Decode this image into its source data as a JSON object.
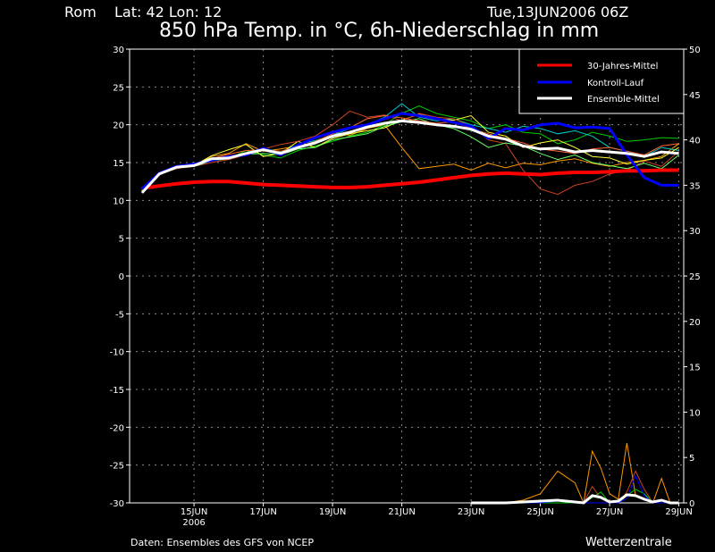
{
  "header": {
    "location": "Rom",
    "coords": "Lat: 42 Lon: 12",
    "run": "Tue,13JUN2006 06Z"
  },
  "footer": {
    "source": "Daten: Ensembles des GFS von NCEP",
    "brand": "Wetterzentrale"
  },
  "chart_data": {
    "type": "line",
    "title": "850 hPa Temp. in °C, 6h-Niederschlag in mm",
    "xlabel": "",
    "ylabel_left": "850 hPa Temp. (°C)",
    "ylabel_right": "6h-Niederschlag (mm)",
    "x_unit": "days after 13JUN2006 00Z",
    "xlim": [
      0.14,
      16.14
    ],
    "ylim_left": [
      -30,
      30
    ],
    "ylim_right": [
      0,
      50
    ],
    "grid": true,
    "legend_position": "top-right",
    "left_ticks": [
      30,
      25,
      20,
      15,
      10,
      5,
      0,
      -5,
      -10,
      -15,
      -20,
      -25,
      -30
    ],
    "right_ticks": [
      50,
      45,
      40,
      35,
      30,
      25,
      20,
      15,
      10,
      5,
      0
    ],
    "x_ticks": [
      {
        "x": 2,
        "label": "15JUN",
        "sub": "2006"
      },
      {
        "x": 4,
        "label": "17JUN"
      },
      {
        "x": 6,
        "label": "19JUN"
      },
      {
        "x": 8,
        "label": "21JUN"
      },
      {
        "x": 10,
        "label": "23JUN"
      },
      {
        "x": 12,
        "label": "25JUN"
      },
      {
        "x": 14,
        "label": "27JUN"
      },
      {
        "x": 16,
        "label": "29JUN"
      }
    ],
    "x": [
      0.5,
      1,
      1.5,
      2,
      2.5,
      3,
      3.5,
      4,
      4.5,
      5,
      5.5,
      6,
      6.5,
      7,
      7.5,
      8,
      8.5,
      9,
      9.5,
      10,
      10.5,
      11,
      11.5,
      12,
      12.5,
      13,
      13.5,
      14,
      14.5,
      15,
      15.5,
      16
    ],
    "legend": [
      {
        "name": "30-Jahres-Mittel",
        "color": "#ff0000"
      },
      {
        "name": "Kontroll-Lauf",
        "color": "#0000ff"
      },
      {
        "name": "Ensemble-Mittel",
        "color": "#ffffff"
      }
    ],
    "members": [
      {
        "color": "#ff9900",
        "values": [
          11.3,
          13.4,
          14.3,
          14.6,
          15.8,
          16.2,
          17.5,
          16.5,
          16.8,
          17.2,
          18.4,
          19.0,
          18.6,
          19.5,
          20.0,
          17.0,
          14.2,
          14.5,
          14.8,
          14.0,
          14.9,
          14.3,
          14.9,
          14.7,
          15.2,
          15.5,
          14.9,
          14.5,
          15.0,
          15.3,
          15.8,
          17.5
        ]
      },
      {
        "color": "#00cc00",
        "values": [
          11.4,
          13.5,
          14.2,
          14.8,
          15.2,
          15.5,
          16.6,
          16.0,
          15.6,
          16.6,
          17.2,
          17.8,
          18.5,
          19.0,
          20.0,
          21.5,
          22.5,
          21.5,
          21.0,
          20.5,
          19.5,
          20.0,
          19.0,
          18.8,
          17.5,
          18.0,
          19.0,
          18.5,
          17.8,
          18.0,
          18.3,
          18.2
        ]
      },
      {
        "color": "#00cccc",
        "values": [
          11.2,
          13.6,
          14.4,
          14.7,
          15.3,
          15.7,
          16.3,
          16.9,
          16.4,
          17.4,
          17.9,
          18.6,
          19.5,
          20.0,
          21.0,
          22.8,
          21.0,
          20.5,
          20.8,
          20.0,
          19.5,
          19.0,
          19.8,
          19.5,
          18.8,
          19.2,
          18.5,
          17.0,
          16.5,
          15.8,
          17.0,
          16.6
        ]
      },
      {
        "color": "#ffff33",
        "values": [
          11.3,
          13.4,
          14.4,
          14.6,
          15.9,
          16.7,
          17.4,
          15.8,
          16.2,
          17.8,
          17.0,
          18.2,
          18.8,
          19.2,
          19.6,
          20.6,
          21.4,
          20.8,
          20.6,
          21.2,
          19.0,
          18.5,
          17.0,
          17.6,
          18.0,
          17.0,
          15.8,
          15.6,
          14.8,
          15.3,
          15.6,
          17.0
        ]
      },
      {
        "color": "#cc4422",
        "values": [
          11.2,
          13.5,
          14.2,
          14.5,
          15.0,
          15.4,
          16.0,
          16.8,
          17.4,
          17.8,
          18.5,
          20.0,
          21.8,
          21.0,
          21.3,
          20.5,
          21.5,
          21.0,
          20.8,
          19.8,
          18.0,
          17.5,
          14.0,
          11.5,
          10.8,
          12.0,
          12.5,
          13.5,
          14.0,
          15.2,
          14.5,
          16.5
        ]
      },
      {
        "color": "#66ff66",
        "values": [
          11.3,
          13.4,
          14.3,
          14.5,
          15.2,
          15.6,
          16.1,
          16.2,
          16.0,
          16.8,
          17.0,
          18.0,
          18.4,
          18.8,
          19.8,
          20.4,
          20.8,
          20.0,
          19.5,
          18.4,
          17.0,
          17.6,
          17.2,
          16.2,
          15.4,
          16.0,
          15.0,
          14.6,
          14.2,
          14.9,
          14.2,
          16.0
        ]
      },
      {
        "color": "#ff6633",
        "values": [
          11.4,
          13.6,
          14.5,
          14.8,
          15.5,
          16.1,
          16.6,
          16.7,
          16.5,
          17.1,
          17.8,
          18.8,
          19.6,
          20.8,
          21.2,
          20.9,
          20.5,
          20.2,
          20.4,
          19.5,
          18.8,
          18.2,
          17.6,
          16.8,
          16.5,
          16.2,
          16.8,
          17.0,
          16.5,
          16.0,
          17.2,
          17.5
        ]
      }
    ],
    "series": [
      {
        "name": "30-Jahres-Mittel",
        "color": "#ff0000",
        "values": [
          11.6,
          11.9,
          12.2,
          12.4,
          12.5,
          12.5,
          12.3,
          12.1,
          12.0,
          11.9,
          11.8,
          11.7,
          11.7,
          11.8,
          12.0,
          12.2,
          12.4,
          12.7,
          13.0,
          13.3,
          13.5,
          13.6,
          13.5,
          13.4,
          13.6,
          13.7,
          13.7,
          13.8,
          13.9,
          13.9,
          14.0,
          14.0
        ]
      },
      {
        "name": "Kontroll-Lauf",
        "color": "#0000ff",
        "values": [
          11.5,
          13.6,
          14.5,
          14.8,
          15.3,
          15.8,
          16.0,
          16.9,
          16.0,
          17.3,
          18.3,
          19.0,
          19.6,
          20.0,
          20.8,
          21.5,
          21.2,
          20.8,
          20.3,
          19.8,
          18.2,
          19.5,
          19.3,
          20.0,
          20.2,
          19.6,
          19.7,
          19.5,
          16.0,
          13.0,
          12.0,
          12.0
        ]
      },
      {
        "name": "Ensemble-Mittel",
        "color": "#ffffff",
        "values": [
          11.0,
          13.5,
          14.4,
          14.6,
          15.5,
          15.6,
          16.2,
          16.7,
          16.2,
          17.0,
          17.6,
          18.5,
          19.0,
          19.7,
          20.2,
          20.5,
          20.3,
          20.0,
          19.8,
          19.4,
          18.5,
          18.1,
          17.2,
          16.8,
          16.9,
          16.4,
          16.6,
          16.4,
          16.2,
          15.8,
          16.4,
          16.2
        ]
      }
    ],
    "precip_x": [
      10,
      10.5,
      11,
      11.5,
      12,
      12.5,
      13,
      13.25,
      13.5,
      13.75,
      14,
      14.25,
      14.5,
      14.75,
      15,
      15.25,
      15.5,
      15.75,
      16
    ],
    "precip_members": [
      {
        "color": "#ff9900",
        "values": [
          0,
          0,
          0,
          0.3,
          1.0,
          3.5,
          2.2,
          0,
          5.7,
          3.8,
          1.0,
          0.4,
          6.6,
          0.8,
          0.5,
          0,
          2.7,
          0,
          0
        ]
      },
      {
        "color": "#cc4422",
        "values": [
          0,
          0,
          0,
          0,
          0,
          0,
          0,
          0,
          1.8,
          0.5,
          0,
          0,
          1.2,
          3.5,
          1.5,
          0,
          0,
          0,
          0
        ]
      },
      {
        "color": "#00cc00",
        "values": [
          0,
          0,
          0,
          0,
          0,
          0,
          0,
          0,
          0.6,
          1.2,
          0,
          0,
          0.8,
          1.5,
          1.0,
          0,
          0,
          0,
          0
        ]
      },
      {
        "color": "#0000ff",
        "values": [
          0,
          0,
          0,
          0,
          0,
          0.2,
          0,
          0,
          0,
          0,
          0,
          0,
          0.5,
          3.0,
          0.8,
          0,
          0,
          0,
          0
        ]
      }
    ],
    "precip_mean": [
      0,
      0,
      0,
      0.1,
      0.2,
      0.3,
      0.1,
      0,
      0.8,
      0.6,
      0.1,
      0.2,
      0.9,
      0.8,
      0.4,
      0.1,
      0.3,
      0,
      0
    ]
  }
}
